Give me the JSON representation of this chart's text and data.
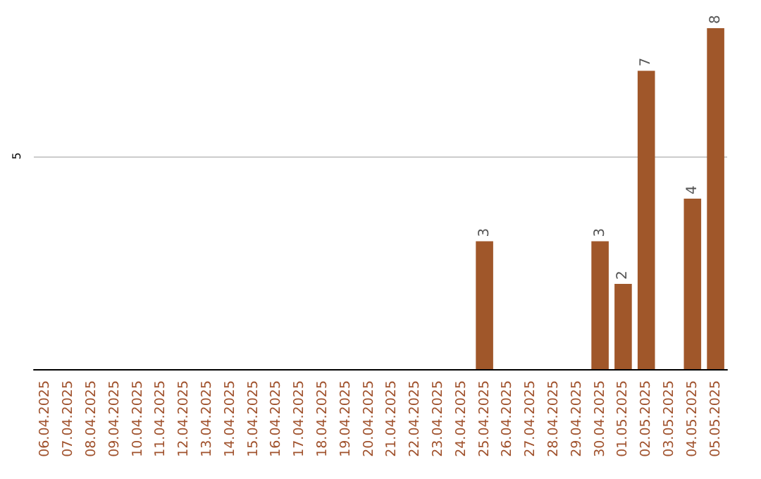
{
  "chart_data": {
    "type": "bar",
    "categories": [
      "06.04.2025",
      "07.04.2025",
      "08.04.2025",
      "09.04.2025",
      "10.04.2025",
      "11.04.2025",
      "12.04.2025",
      "13.04.2025",
      "14.04.2025",
      "15.04.2025",
      "16.04.2025",
      "17.04.2025",
      "18.04.2025",
      "19.04.2025",
      "20.04.2025",
      "21.04.2025",
      "22.04.2025",
      "23.04.2025",
      "24.04.2025",
      "25.04.2025",
      "26.04.2025",
      "27.04.2025",
      "28.04.2025",
      "29.04.2025",
      "30.04.2025",
      "01.05.2025",
      "02.05.2025",
      "03.05.2025",
      "04.05.2025",
      "05.05.2025"
    ],
    "values": [
      null,
      null,
      null,
      null,
      null,
      null,
      null,
      null,
      null,
      null,
      null,
      null,
      null,
      null,
      null,
      null,
      null,
      null,
      null,
      3,
      null,
      null,
      null,
      null,
      3,
      2,
      7,
      null,
      4,
      8
    ],
    "color": "#a0572a",
    "ylim": [
      0,
      8
    ],
    "yticks": [
      5
    ],
    "grid": "y",
    "data_labels": true
  }
}
